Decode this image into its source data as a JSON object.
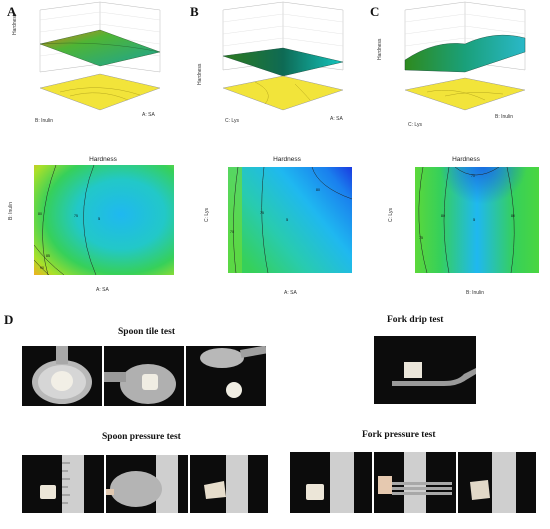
{
  "panels": {
    "A": {
      "letter": "A",
      "zlabel": "Hardness",
      "xlabel": "A: SA",
      "ylabel": "B: Inulin",
      "contour_title": "Hardness",
      "contour_xlabel": "A: SA",
      "contour_ylabel": "B: Inulin"
    },
    "B": {
      "letter": "B",
      "zlabel": "Hardness",
      "xlabel": "A: SA",
      "ylabel": "C: Lys",
      "contour_title": "Hardness",
      "contour_xlabel": "A: SA",
      "contour_ylabel": "C: Lys"
    },
    "C": {
      "letter": "C",
      "zlabel": "Hardness",
      "xlabel": "B: Inulin",
      "ylabel": "C: Lys",
      "contour_title": "Hardness",
      "contour_xlabel": "B: Inulin",
      "contour_ylabel": "C: Lys"
    }
  },
  "ztick_labels": [
    "100",
    "95",
    "90",
    "85",
    "80",
    "75",
    "70",
    "65"
  ],
  "ztick_labels_c": [
    "95",
    "90",
    "85",
    "80",
    "75",
    "70",
    "65"
  ],
  "contour_ticks": [
    "-1.00",
    "-0.50",
    "0.00",
    "0.50",
    "1.00"
  ],
  "contour_labels": {
    "A": [
      "75",
      "80",
      "75",
      "85",
      "90"
    ],
    "B": [
      "70",
      "75",
      "80"
    ],
    "C": [
      "75",
      "80",
      "80",
      "70"
    ]
  },
  "center_mark": "5",
  "panelD": {
    "letter": "D",
    "spoon_tile": "Spoon tile test",
    "fork_drip": "Fork drip test",
    "spoon_pressure": "Spoon pressure test",
    "fork_pressure": "Fork pressure test"
  },
  "colors": {
    "surface_green": "#2fa64b",
    "contour_blue": "#1fb8f0",
    "contour_green": "#36d05a",
    "contour_red": "#e8401c",
    "floor_yellow": "#f2e43a"
  }
}
